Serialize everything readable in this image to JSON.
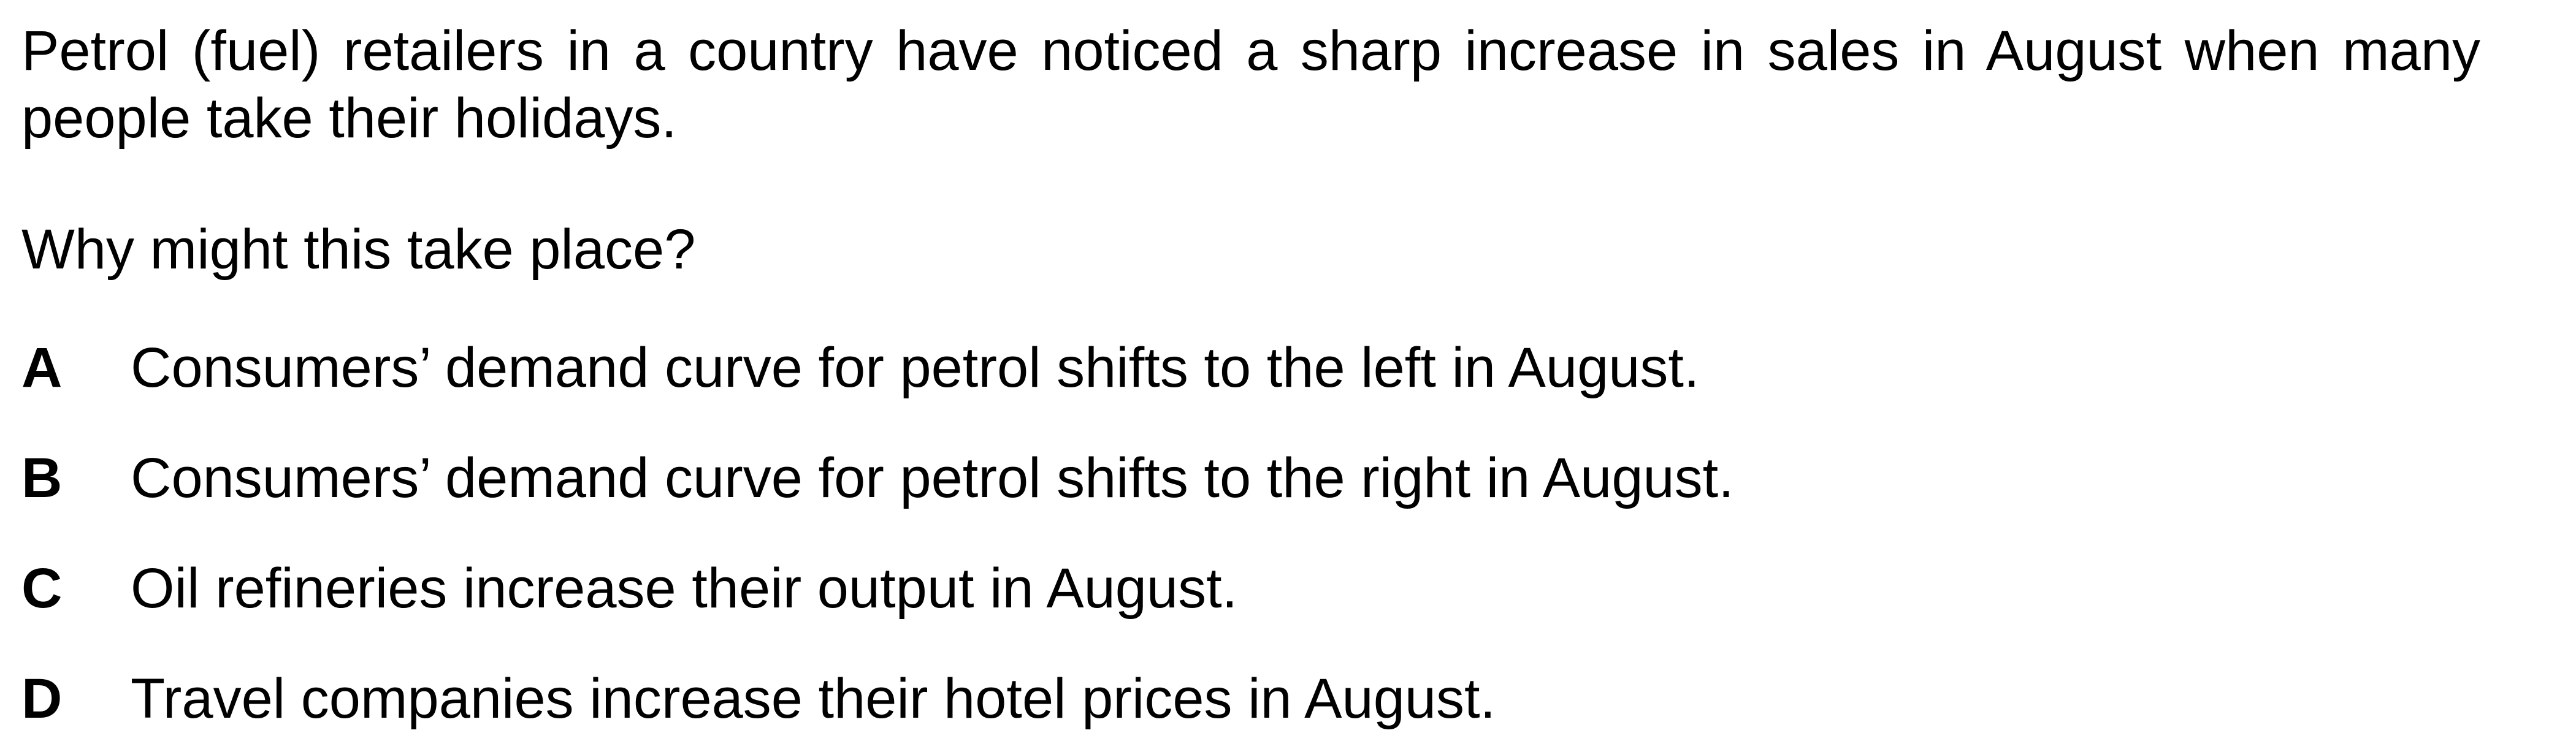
{
  "question": {
    "stem": "Petrol (fuel) retailers in a country have noticed a sharp increase in sales in August when many people take their holidays.",
    "prompt": "Why might this take place?",
    "options": [
      {
        "letter": "A",
        "text": "Consumers’ demand curve for petrol shifts to the left in August."
      },
      {
        "letter": "B",
        "text": "Consumers’ demand curve for petrol shifts to the right in August."
      },
      {
        "letter": "C",
        "text": "Oil refineries increase their output in August."
      },
      {
        "letter": "D",
        "text": "Travel companies increase their hotel prices in August."
      }
    ]
  }
}
